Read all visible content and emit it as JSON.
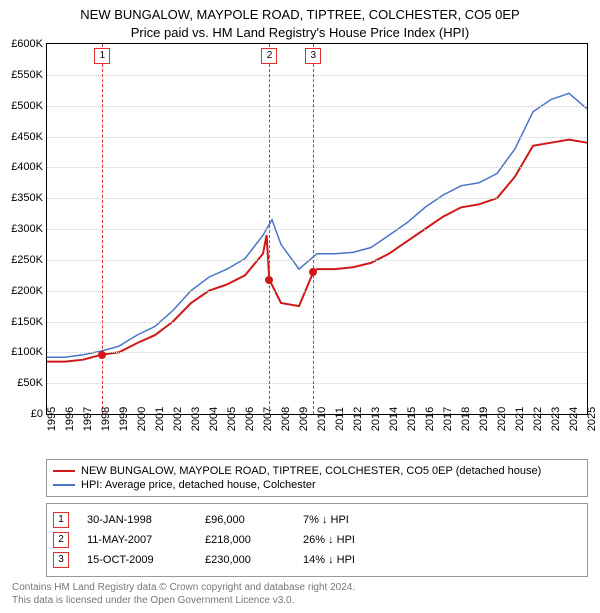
{
  "title": {
    "line1": "NEW BUNGALOW, MAYPOLE ROAD, TIPTREE, COLCHESTER, CO5 0EP",
    "line2": "Price paid vs. HM Land Registry's House Price Index (HPI)"
  },
  "chart": {
    "type": "line",
    "background_color": "#ffffff",
    "grid_color": "#cfcfcf",
    "axis_color": "#000000",
    "title_fontsize": 13,
    "label_fontsize": 11,
    "y": {
      "min": 0,
      "max": 600000,
      "step": 50000,
      "ticks": [
        "£0",
        "£50K",
        "£100K",
        "£150K",
        "£200K",
        "£250K",
        "£300K",
        "£350K",
        "£400K",
        "£450K",
        "£500K",
        "£550K",
        "£600K"
      ]
    },
    "x": {
      "min": 1995,
      "max": 2025,
      "step": 1,
      "ticks": [
        "1995",
        "1996",
        "1997",
        "1998",
        "1999",
        "2000",
        "2001",
        "2002",
        "2003",
        "2004",
        "2005",
        "2006",
        "2007",
        "2008",
        "2009",
        "2010",
        "2011",
        "2012",
        "2013",
        "2014",
        "2015",
        "2016",
        "2017",
        "2018",
        "2019",
        "2020",
        "2021",
        "2022",
        "2023",
        "2024",
        "2025"
      ]
    },
    "series": [
      {
        "id": "property",
        "label": "NEW BUNGALOW, MAYPOLE ROAD, TIPTREE, COLCHESTER, CO5 0EP (detached house)",
        "color": "#d01818",
        "line_width": 2,
        "points": [
          [
            1995,
            85000
          ],
          [
            1996,
            85000
          ],
          [
            1997,
            88000
          ],
          [
            1998,
            96000
          ],
          [
            1999,
            100000
          ],
          [
            2000,
            115000
          ],
          [
            2001,
            128000
          ],
          [
            2002,
            150000
          ],
          [
            2003,
            180000
          ],
          [
            2004,
            200000
          ],
          [
            2005,
            210000
          ],
          [
            2006,
            225000
          ],
          [
            2007,
            260000
          ],
          [
            2007.2,
            290000
          ],
          [
            2007.35,
            218000
          ],
          [
            2008,
            180000
          ],
          [
            2009,
            175000
          ],
          [
            2009.79,
            230000
          ],
          [
            2010,
            235000
          ],
          [
            2011,
            235000
          ],
          [
            2012,
            238000
          ],
          [
            2013,
            245000
          ],
          [
            2014,
            260000
          ],
          [
            2015,
            280000
          ],
          [
            2016,
            300000
          ],
          [
            2017,
            320000
          ],
          [
            2018,
            335000
          ],
          [
            2019,
            340000
          ],
          [
            2020,
            350000
          ],
          [
            2021,
            385000
          ],
          [
            2022,
            435000
          ],
          [
            2023,
            440000
          ],
          [
            2024,
            445000
          ],
          [
            2025,
            440000
          ]
        ]
      },
      {
        "id": "hpi",
        "label": "HPI: Average price, detached house, Colchester",
        "color": "#4a74c9",
        "line_width": 1.5,
        "points": [
          [
            1995,
            92000
          ],
          [
            1996,
            92000
          ],
          [
            1997,
            96000
          ],
          [
            1998,
            102000
          ],
          [
            1999,
            110000
          ],
          [
            2000,
            128000
          ],
          [
            2001,
            142000
          ],
          [
            2002,
            168000
          ],
          [
            2003,
            200000
          ],
          [
            2004,
            222000
          ],
          [
            2005,
            235000
          ],
          [
            2006,
            252000
          ],
          [
            2007,
            290000
          ],
          [
            2007.5,
            315000
          ],
          [
            2008,
            275000
          ],
          [
            2009,
            235000
          ],
          [
            2010,
            260000
          ],
          [
            2011,
            260000
          ],
          [
            2012,
            262000
          ],
          [
            2013,
            270000
          ],
          [
            2014,
            290000
          ],
          [
            2015,
            310000
          ],
          [
            2016,
            335000
          ],
          [
            2017,
            355000
          ],
          [
            2018,
            370000
          ],
          [
            2019,
            375000
          ],
          [
            2020,
            390000
          ],
          [
            2021,
            430000
          ],
          [
            2022,
            490000
          ],
          [
            2023,
            510000
          ],
          [
            2024,
            520000
          ],
          [
            2025,
            495000
          ]
        ]
      }
    ],
    "events": [
      {
        "n": "1",
        "year": 1998.08,
        "date": "30-JAN-1998",
        "price": "£96,000",
        "pct": "7% ↓ HPI",
        "point_value": 96000
      },
      {
        "n": "2",
        "year": 2007.36,
        "date": "11-MAY-2007",
        "price": "£218,000",
        "pct": "26% ↓ HPI",
        "point_value": 218000
      },
      {
        "n": "3",
        "year": 2009.79,
        "date": "15-OCT-2009",
        "price": "£230,000",
        "pct": "14% ↓ HPI",
        "point_value": 230000
      }
    ],
    "event_line_color": "#e03030",
    "event_point_color": "#d01818"
  },
  "legend": {
    "rows": [
      {
        "color": "#d01818",
        "label_ref": "chart.series.0.label"
      },
      {
        "color": "#4a74c9",
        "label_ref": "chart.series.1.label"
      }
    ]
  },
  "footnote": {
    "line1": "Contains HM Land Registry data © Crown copyright and database right 2024.",
    "line2": "This data is licensed under the Open Government Licence v3.0."
  }
}
